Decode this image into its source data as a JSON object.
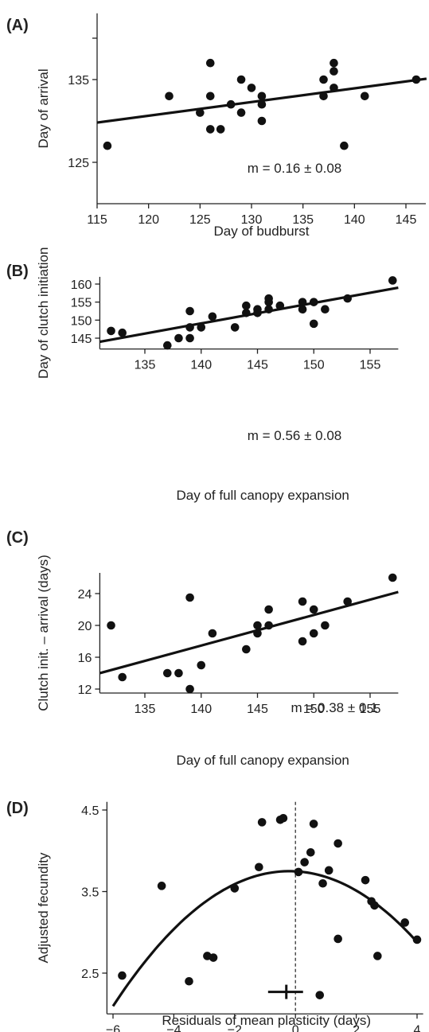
{
  "chart_data": [
    {
      "panel": "(A)",
      "type": "scatter",
      "xlabel": "Day of budburst",
      "ylabel": "Day of arrival",
      "xlim": [
        115,
        147
      ],
      "ylim": [
        120,
        143
      ],
      "xticks": [
        115,
        120,
        125,
        130,
        135,
        140,
        145
      ],
      "yticks": [
        125,
        135
      ],
      "grid": false,
      "annotation": "m = 0.16 ± 0.08",
      "fit": {
        "kind": "linear",
        "x": [
          115,
          147
        ],
        "y": [
          129.8,
          135.1
        ]
      },
      "points": [
        {
          "x": 116,
          "y": 127
        },
        {
          "x": 122,
          "y": 133
        },
        {
          "x": 125,
          "y": 131
        },
        {
          "x": 126,
          "y": 137
        },
        {
          "x": 126,
          "y": 133
        },
        {
          "x": 126,
          "y": 129
        },
        {
          "x": 127,
          "y": 129
        },
        {
          "x": 128,
          "y": 132
        },
        {
          "x": 129,
          "y": 135
        },
        {
          "x": 129,
          "y": 131
        },
        {
          "x": 130,
          "y": 134
        },
        {
          "x": 131,
          "y": 133
        },
        {
          "x": 131,
          "y": 132
        },
        {
          "x": 131,
          "y": 130
        },
        {
          "x": 137,
          "y": 135
        },
        {
          "x": 137,
          "y": 133
        },
        {
          "x": 138,
          "y": 137
        },
        {
          "x": 138,
          "y": 136
        },
        {
          "x": 138,
          "y": 134
        },
        {
          "x": 139,
          "y": 127
        },
        {
          "x": 141,
          "y": 133
        },
        {
          "x": 146,
          "y": 135
        }
      ]
    },
    {
      "panel": "(B)",
      "type": "scatter",
      "xlabel": "Day of full canopy expansion",
      "ylabel": "Day of clutch initiation",
      "xlim": [
        131,
        157.5
      ],
      "ylim": [
        142,
        162
      ],
      "xticks": [
        135,
        140,
        145,
        150,
        155
      ],
      "yticks": [
        145,
        150,
        155,
        160
      ],
      "grid": false,
      "annotation": "m = 0.56 ± 0.08",
      "fit": {
        "kind": "linear",
        "x": [
          131,
          157.5
        ],
        "y": [
          144.0,
          159.0
        ]
      },
      "points": [
        {
          "x": 132,
          "y": 147
        },
        {
          "x": 133,
          "y": 146.5
        },
        {
          "x": 137,
          "y": 143
        },
        {
          "x": 138,
          "y": 145
        },
        {
          "x": 139,
          "y": 152.5
        },
        {
          "x": 139,
          "y": 148
        },
        {
          "x": 139,
          "y": 145
        },
        {
          "x": 140,
          "y": 148
        },
        {
          "x": 141,
          "y": 151
        },
        {
          "x": 143,
          "y": 148
        },
        {
          "x": 144,
          "y": 154
        },
        {
          "x": 144,
          "y": 152
        },
        {
          "x": 145,
          "y": 153
        },
        {
          "x": 145,
          "y": 152
        },
        {
          "x": 146,
          "y": 156
        },
        {
          "x": 146,
          "y": 155
        },
        {
          "x": 146,
          "y": 153
        },
        {
          "x": 147,
          "y": 154
        },
        {
          "x": 149,
          "y": 155
        },
        {
          "x": 149,
          "y": 153
        },
        {
          "x": 150,
          "y": 155
        },
        {
          "x": 150,
          "y": 149
        },
        {
          "x": 151,
          "y": 153
        },
        {
          "x": 153,
          "y": 156
        },
        {
          "x": 157,
          "y": 161
        }
      ]
    },
    {
      "panel": "(C)",
      "type": "scatter",
      "xlabel": "Day of full canopy expansion",
      "ylabel": "Clutch init. – arrival (days)",
      "xlim": [
        131,
        157.5
      ],
      "ylim": [
        11.5,
        26.6
      ],
      "xticks": [
        135,
        140,
        145,
        150,
        155
      ],
      "yticks": [
        12,
        16,
        20,
        24
      ],
      "grid": false,
      "annotation": "m = 0.38 ± 0.1",
      "fit": {
        "kind": "linear",
        "x": [
          131,
          157.5
        ],
        "y": [
          14.0,
          24.2
        ]
      },
      "points": [
        {
          "x": 132,
          "y": 20
        },
        {
          "x": 133,
          "y": 13.5
        },
        {
          "x": 137,
          "y": 14
        },
        {
          "x": 138,
          "y": 14
        },
        {
          "x": 139,
          "y": 23.5
        },
        {
          "x": 139,
          "y": 12
        },
        {
          "x": 140,
          "y": 15
        },
        {
          "x": 141,
          "y": 19
        },
        {
          "x": 144,
          "y": 17
        },
        {
          "x": 145,
          "y": 20
        },
        {
          "x": 145,
          "y": 19
        },
        {
          "x": 146,
          "y": 22
        },
        {
          "x": 146,
          "y": 20
        },
        {
          "x": 149,
          "y": 23
        },
        {
          "x": 149,
          "y": 18
        },
        {
          "x": 150,
          "y": 22
        },
        {
          "x": 150,
          "y": 19
        },
        {
          "x": 151,
          "y": 20
        },
        {
          "x": 153,
          "y": 23
        },
        {
          "x": 157,
          "y": 26
        }
      ]
    },
    {
      "panel": "(D)",
      "type": "scatter",
      "xlabel": "Residuals of mean plasticity (days)",
      "ylabel": "Adjusted fecundity",
      "xlim": [
        -6.2,
        4.2
      ],
      "ylim": [
        2.0,
        4.6
      ],
      "xticks": [
        -6,
        -4,
        -2,
        0,
        2,
        4
      ],
      "yticks": [
        2.5,
        3.5,
        4.5
      ],
      "grid": false,
      "fit": {
        "kind": "quadratic",
        "vertex_x": -0.2,
        "vertex_y": 3.75,
        "curvature": -0.0492,
        "x": [
          -6.0,
          4.0
        ]
      },
      "reference_line_x": 0,
      "error_bar": {
        "center": -0.3,
        "low": -0.9,
        "high": 0.25,
        "y": 2.27
      },
      "points": [
        {
          "x": -5.7,
          "y": 2.47
        },
        {
          "x": -4.4,
          "y": 3.57
        },
        {
          "x": -3.5,
          "y": 2.4
        },
        {
          "x": -2.9,
          "y": 2.71
        },
        {
          "x": -2.7,
          "y": 2.69
        },
        {
          "x": -2.0,
          "y": 3.54
        },
        {
          "x": -1.2,
          "y": 3.8
        },
        {
          "x": -1.1,
          "y": 4.35
        },
        {
          "x": -0.5,
          "y": 4.38
        },
        {
          "x": -0.4,
          "y": 4.4
        },
        {
          "x": 0.3,
          "y": 3.86
        },
        {
          "x": 0.5,
          "y": 3.98
        },
        {
          "x": 0.6,
          "y": 4.33
        },
        {
          "x": 0.8,
          "y": 2.23
        },
        {
          "x": 0.9,
          "y": 3.6
        },
        {
          "x": 1.1,
          "y": 3.76
        },
        {
          "x": 1.4,
          "y": 4.09
        },
        {
          "x": 1.4,
          "y": 2.92
        },
        {
          "x": 2.3,
          "y": 3.64
        },
        {
          "x": 2.5,
          "y": 3.38
        },
        {
          "x": 2.6,
          "y": 3.33
        },
        {
          "x": 2.7,
          "y": 2.71
        },
        {
          "x": 3.6,
          "y": 3.12
        },
        {
          "x": 4.0,
          "y": 2.91
        },
        {
          "x": 0.1,
          "y": 3.74
        }
      ]
    }
  ]
}
